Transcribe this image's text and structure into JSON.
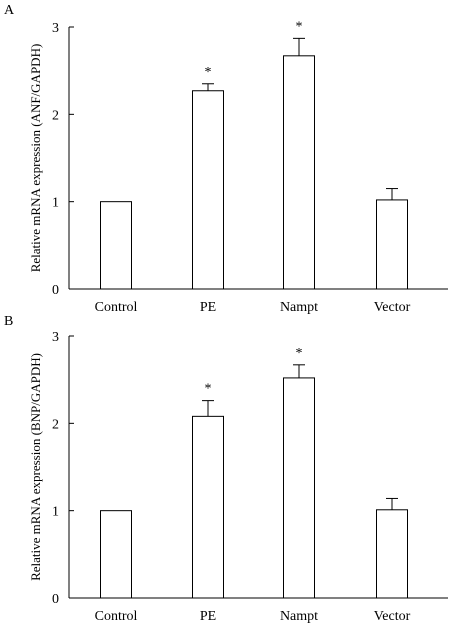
{
  "chart_data": [
    {
      "panel_label": "A",
      "type": "bar",
      "categories": [
        "Control",
        "PE",
        "Nampt",
        "Vector"
      ],
      "values": [
        1.0,
        2.27,
        2.67,
        1.02
      ],
      "errors": [
        0,
        0.08,
        0.2,
        0.13
      ],
      "significance": [
        "",
        "*",
        "*",
        ""
      ],
      "title": "",
      "xlabel": "",
      "ylabel": "Relative mRNA expression (ANF/GAPDH)",
      "ylim": [
        0,
        3
      ],
      "yticks": [
        "0",
        "1",
        "2",
        "3"
      ],
      "grid": false,
      "legend": "none"
    },
    {
      "panel_label": "B",
      "type": "bar",
      "categories": [
        "Control",
        "PE",
        "Nampt",
        "Vector"
      ],
      "values": [
        1.0,
        2.08,
        2.52,
        1.01
      ],
      "errors": [
        0,
        0.18,
        0.15,
        0.13
      ],
      "significance": [
        "",
        "*",
        "*",
        ""
      ],
      "title": "",
      "xlabel": "",
      "ylabel": "Relative mRNA expression (BNP/GAPDH)",
      "ylim": [
        0,
        3
      ],
      "yticks": [
        "0",
        "1",
        "2",
        "3"
      ],
      "grid": false,
      "legend": "none"
    }
  ]
}
